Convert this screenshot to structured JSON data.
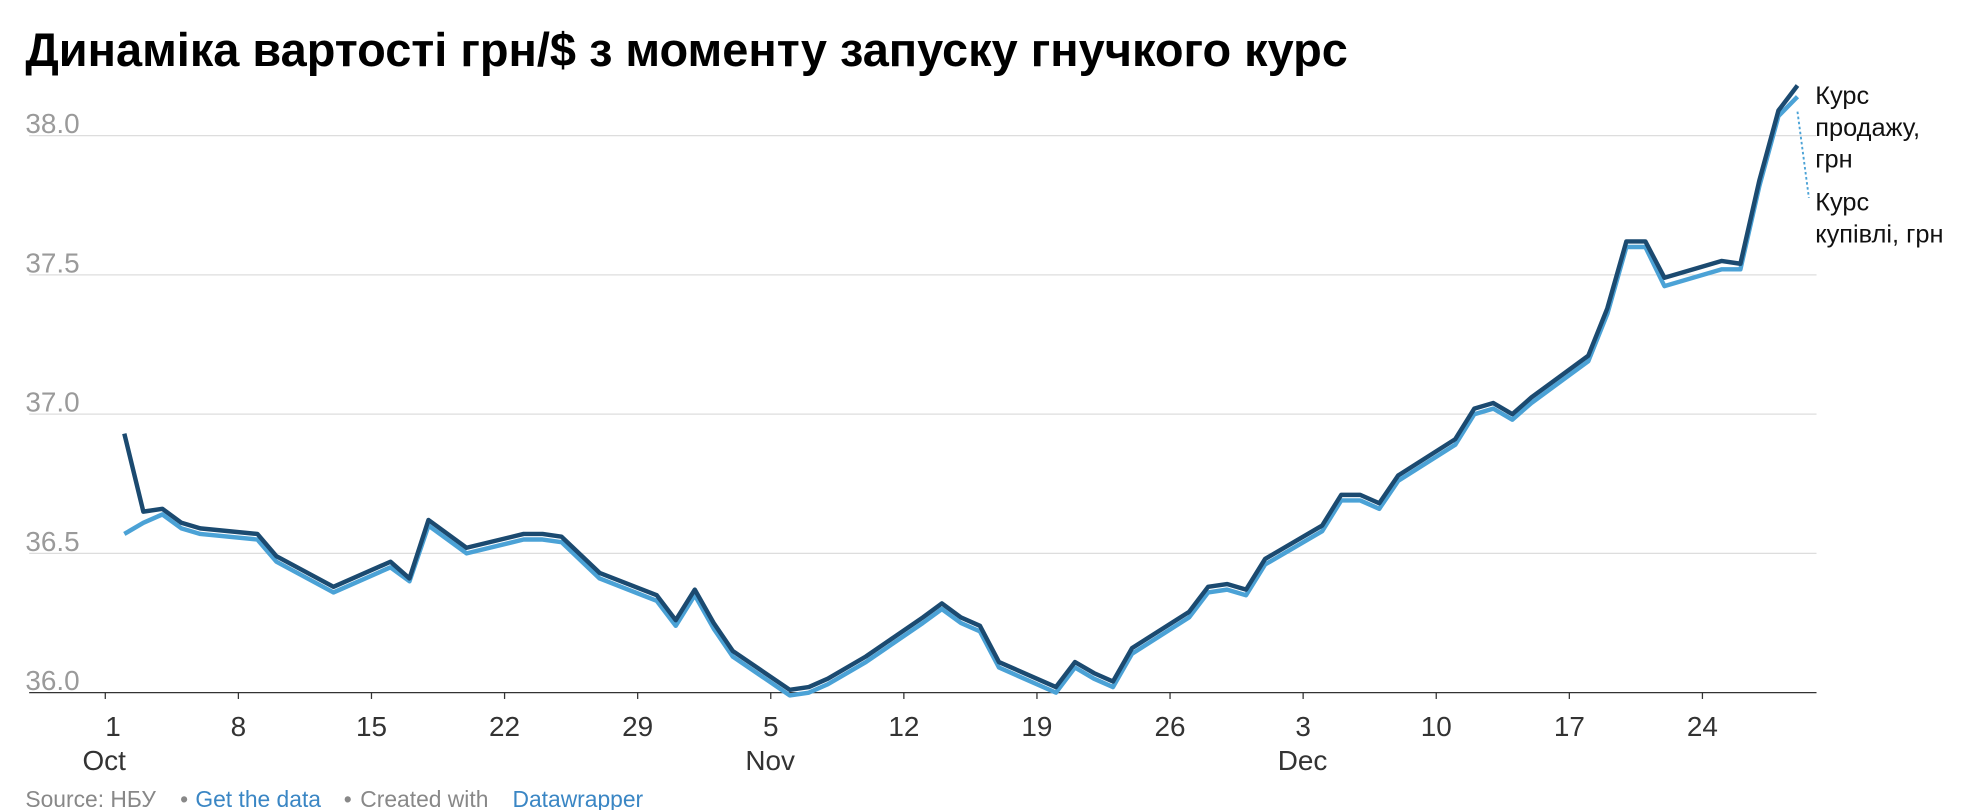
{
  "chart_data": {
    "type": "line",
    "title": "Динаміка вартості грн/$ з моменту запуску гнучкого курс",
    "x": [
      "10-02",
      "10-03",
      "10-04",
      "10-05",
      "10-06",
      "10-09",
      "10-10",
      "10-13",
      "10-16",
      "10-17",
      "10-18",
      "10-20",
      "10-23",
      "10-24",
      "10-25",
      "10-27",
      "10-30",
      "10-31",
      "11-01",
      "11-02",
      "11-03",
      "11-06",
      "11-07",
      "11-08",
      "11-10",
      "11-13",
      "11-14",
      "11-15",
      "11-16",
      "11-17",
      "11-20",
      "11-21",
      "11-22",
      "11-23",
      "11-24",
      "11-27",
      "11-28",
      "11-29",
      "11-30",
      "12-01",
      "12-04",
      "12-05",
      "12-06",
      "12-07",
      "12-08",
      "12-11",
      "12-12",
      "12-13",
      "12-14",
      "12-15",
      "12-18",
      "12-19",
      "12-20",
      "12-21",
      "12-22",
      "12-25",
      "12-26",
      "12-27",
      "12-28",
      "12-29"
    ],
    "series": [
      {
        "name": "Курс продажу, грн",
        "color": "#1b4a70",
        "values": [
          36.93,
          36.65,
          36.66,
          36.61,
          36.59,
          36.57,
          36.49,
          36.38,
          36.47,
          36.41,
          36.62,
          36.52,
          36.57,
          36.57,
          36.56,
          36.43,
          36.35,
          36.26,
          36.37,
          36.25,
          36.15,
          36.01,
          36.02,
          36.05,
          36.13,
          36.27,
          36.32,
          36.27,
          36.24,
          36.11,
          36.02,
          36.11,
          36.07,
          36.04,
          36.16,
          36.29,
          36.38,
          36.39,
          36.37,
          36.48,
          36.6,
          36.71,
          36.71,
          36.68,
          36.78,
          36.91,
          37.02,
          37.04,
          37.0,
          37.06,
          37.21,
          37.38,
          37.62,
          37.62,
          37.49,
          37.55,
          37.54,
          37.84,
          38.09,
          38.18
        ]
      },
      {
        "name": "Курс купівлі, грн",
        "color": "#4ba2d6",
        "values": [
          36.57,
          36.61,
          36.64,
          36.59,
          36.57,
          36.55,
          36.47,
          36.36,
          36.45,
          36.4,
          36.6,
          36.5,
          36.55,
          36.55,
          36.54,
          36.41,
          36.33,
          36.24,
          36.35,
          36.23,
          36.13,
          35.99,
          36.0,
          36.03,
          36.11,
          36.25,
          36.3,
          36.25,
          36.22,
          36.09,
          36.0,
          36.09,
          36.05,
          36.02,
          36.14,
          36.27,
          36.36,
          36.37,
          36.35,
          36.46,
          36.58,
          36.69,
          36.69,
          36.66,
          36.76,
          36.89,
          37.0,
          37.02,
          36.98,
          37.04,
          37.19,
          37.36,
          37.6,
          37.6,
          37.46,
          37.52,
          37.52,
          37.82,
          38.07,
          38.14
        ]
      }
    ],
    "ylim": [
      36.0,
      38.2
    ],
    "yticks": [
      {
        "value": 36,
        "label": "36.0"
      },
      {
        "value": 36.5,
        "label": "36.5"
      },
      {
        "value": 37,
        "label": "37.0"
      },
      {
        "value": 37.5,
        "label": "37.5"
      },
      {
        "value": 38,
        "label": "38.0"
      }
    ],
    "xlim": [
      "10-01",
      "12-30"
    ],
    "xticks": [
      {
        "value": "10-01",
        "label": "1"
      },
      {
        "value": "10-08",
        "label": "8"
      },
      {
        "value": "10-15",
        "label": "15"
      },
      {
        "value": "10-22",
        "label": "22"
      },
      {
        "value": "10-29",
        "label": "29"
      },
      {
        "value": "11-05",
        "label": "5"
      },
      {
        "value": "11-12",
        "label": "12"
      },
      {
        "value": "11-19",
        "label": "19"
      },
      {
        "value": "11-26",
        "label": "26"
      },
      {
        "value": "12-03",
        "label": "3"
      },
      {
        "value": "12-10",
        "label": "10"
      },
      {
        "value": "12-17",
        "label": "17"
      },
      {
        "value": "12-24",
        "label": "24"
      }
    ],
    "xtick_months": [
      {
        "value": "10-01",
        "label": "Oct"
      },
      {
        "value": "11-05",
        "label": "Nov"
      },
      {
        "value": "12-03",
        "label": "Dec"
      }
    ],
    "grid": true,
    "footer": {
      "source": "Source: НБУ",
      "separator": "•",
      "get_data": "Get the data",
      "created_with": "Created with",
      "credit": "Datawrapper"
    }
  }
}
